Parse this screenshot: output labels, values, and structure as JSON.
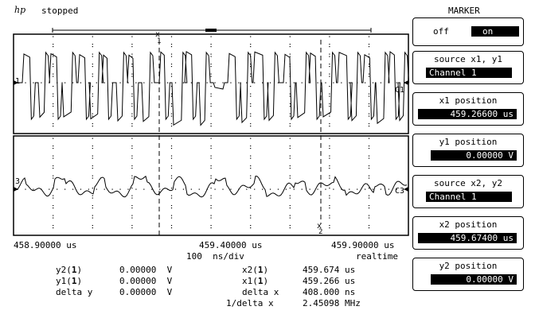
{
  "header": {
    "logo": "hp",
    "status": "stopped"
  },
  "markers": {
    "x1_label": "x",
    "x1_num": "1",
    "x2_label": "x",
    "x2_num": "2"
  },
  "traces": {
    "ch1_left_marker": "1",
    "ch1_right_marker": "C1",
    "ch3_left_marker": "3",
    "ch3_right_marker": "C3"
  },
  "timebase": {
    "left": "458.90000 us",
    "center": "459.40000 us",
    "right": "459.90000 us",
    "scale": "100  ns/div",
    "mode": "realtime"
  },
  "readouts": {
    "y2_label": "y2(",
    "y2_ch": "1",
    "y2_value": "0.00000  V",
    "y1_label": "y1(",
    "y1_ch": "1",
    "y1_value": "0.00000  V",
    "dy_label": "delta y",
    "dy_value": "0.00000  V",
    "x2_label": "x2(",
    "x2_ch": "1",
    "x2_value": "459.674 us",
    "x1_label": "x1(",
    "x1_ch": "1",
    "x1_value": "459.266 us",
    "dx_label": "delta x",
    "dx_value": "408.000 ns",
    "inv_label": "1/delta x",
    "inv_value": "2.45098 MHz",
    "paren_close": ")"
  },
  "softkeys": {
    "title": "MARKER",
    "off_label": "off",
    "on_label": "on",
    "src1_label": "source x1, y1",
    "src1_value": "Channel 1",
    "x1pos_label": "x1 position",
    "x1pos_value": "459.26600 us",
    "y1pos_label": "y1 position",
    "y1pos_value": "0.00000  V",
    "src2_label": "source x2, y2",
    "src2_value": "Channel 1",
    "x2pos_label": "x2 position",
    "x2pos_value": "459.67400 us",
    "y2pos_label": "y2 position",
    "y2pos_value": "0.00000  V"
  }
}
